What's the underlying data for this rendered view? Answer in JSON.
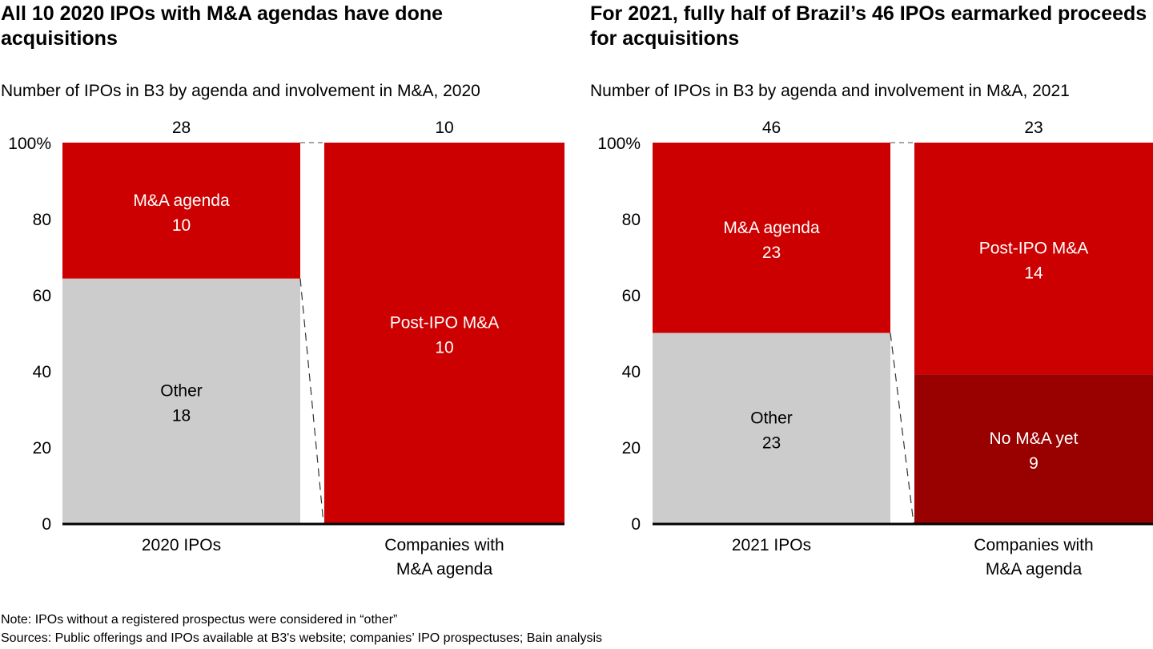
{
  "chart_data": [
    {
      "type": "bar",
      "subtype": "stacked-100",
      "title": "All 10 2020 IPOs with M&A agendas have done acquisitions",
      "subtitle": "Number of IPOs in B3 by agenda and involvement in M&A, 2020",
      "ylim": [
        0,
        100
      ],
      "yticks": [
        "0",
        "20",
        "40",
        "60",
        "80",
        "100%"
      ],
      "yticks_values": [
        0,
        20,
        40,
        60,
        80,
        100
      ],
      "categories": [
        "2020 IPOs",
        "Companies with M&A agenda"
      ],
      "category_label_lines": [
        [
          "2020 IPOs"
        ],
        [
          "Companies with",
          "M&A agenda"
        ]
      ],
      "totals": [
        "28",
        "10"
      ],
      "bars": [
        {
          "segments": [
            {
              "name": "Other",
              "value": 18,
              "color": "#cccccc",
              "text_color": "#000000"
            },
            {
              "name": "M&A agenda",
              "value": 10,
              "color": "#cc0000",
              "text_color": "#ffffff"
            }
          ]
        },
        {
          "segments": [
            {
              "name": "Post-IPO M&A",
              "value": 10,
              "color": "#cc0000",
              "text_color": "#ffffff"
            }
          ]
        }
      ]
    },
    {
      "type": "bar",
      "subtype": "stacked-100",
      "title": "For 2021, fully half of Brazil’s 46 IPOs earmarked proceeds for acquisitions",
      "subtitle": "Number of IPOs in B3 by agenda and involvement in M&A, 2021",
      "ylim": [
        0,
        100
      ],
      "yticks": [
        "0",
        "20",
        "40",
        "60",
        "80",
        "100%"
      ],
      "yticks_values": [
        0,
        20,
        40,
        60,
        80,
        100
      ],
      "categories": [
        "2021 IPOs",
        "Companies with M&A agenda"
      ],
      "category_label_lines": [
        [
          "2021 IPOs"
        ],
        [
          "Companies with",
          "M&A agenda"
        ]
      ],
      "totals": [
        "46",
        "23"
      ],
      "bars": [
        {
          "segments": [
            {
              "name": "Other",
              "value": 23,
              "color": "#cccccc",
              "text_color": "#000000"
            },
            {
              "name": "M&A agenda",
              "value": 23,
              "color": "#cc0000",
              "text_color": "#ffffff"
            }
          ]
        },
        {
          "segments": [
            {
              "name": "No M&A yet",
              "value": 9,
              "color": "#990000",
              "text_color": "#ffffff"
            },
            {
              "name": "Post-IPO M&A",
              "value": 14,
              "color": "#cc0000",
              "text_color": "#ffffff"
            }
          ]
        }
      ]
    }
  ],
  "notes": {
    "note": "Note: IPOs without a registered prospectus were considered in “other”",
    "sources": "Sources: Public offerings and IPOs available at B3's website; companies’ IPO prospectuses; Bain analysis"
  }
}
